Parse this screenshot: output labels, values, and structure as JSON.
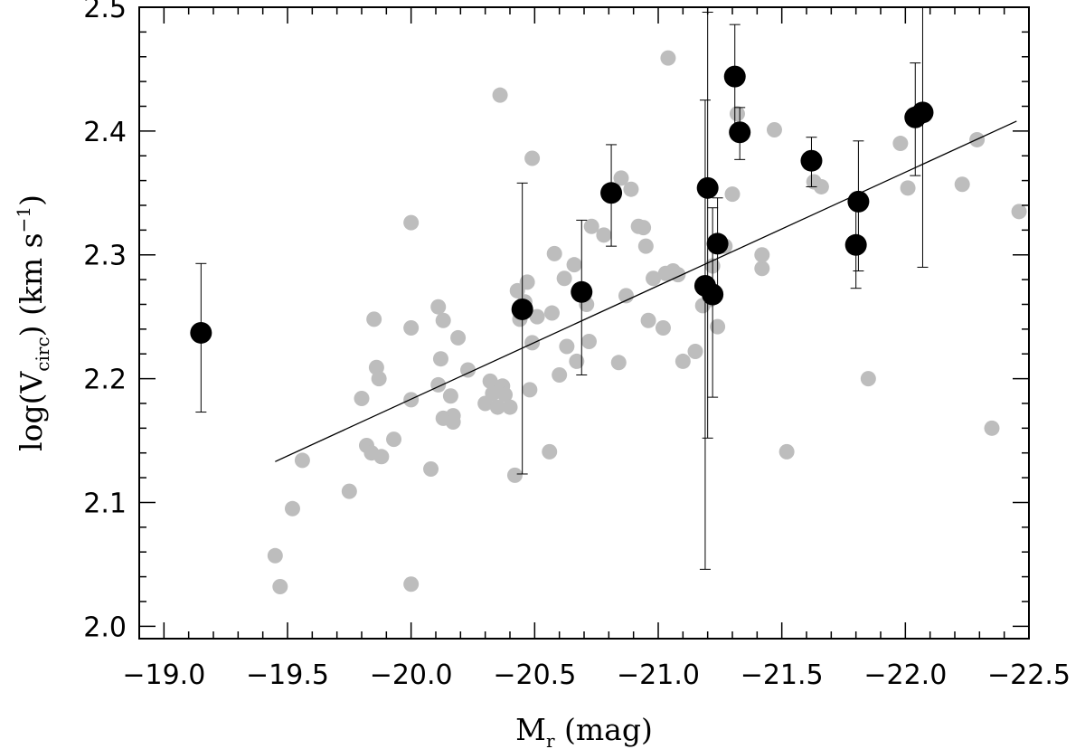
{
  "chart_data": {
    "type": "scatter",
    "xlabel": "M",
    "xlabel_sub": "r",
    "xlabel_unit": " (mag)",
    "ylabel_pre": "log(V",
    "ylabel_sub": "circ",
    "ylabel_mid": ")  (km s",
    "ylabel_sup": "−1",
    "ylabel_post": ")",
    "xlim": [
      -18.9,
      -22.5
    ],
    "ylim": [
      1.99,
      2.5
    ],
    "grid": false,
    "x_ticks": [
      -19.0,
      -19.5,
      -20.0,
      -20.5,
      -21.0,
      -21.5,
      -22.0,
      -22.5
    ],
    "x_tick_labels": [
      "−19.0",
      "−19.5",
      "−20.0",
      "−20.5",
      "−21.0",
      "−21.5",
      "−22.0",
      "−22.5"
    ],
    "y_ticks": [
      2.0,
      2.1,
      2.2,
      2.3,
      2.4,
      2.5
    ],
    "y_tick_labels": [
      "2.0",
      "2.1",
      "2.2",
      "2.3",
      "2.4",
      "2.5"
    ],
    "colors": {
      "gray_points": "#bdbdbd",
      "black_points": "#000000",
      "fit_line": "#000000",
      "axes": "#000000"
    },
    "fit_line": {
      "x": [
        -19.45,
        -22.45
      ],
      "y": [
        2.133,
        2.408
      ]
    },
    "series": [
      {
        "marker": "gray-circle",
        "points": [
          [
            -19.45,
            2.057
          ],
          [
            -19.47,
            2.032
          ],
          [
            -19.52,
            2.095
          ],
          [
            -19.56,
            2.134
          ],
          [
            -19.75,
            2.109
          ],
          [
            -19.8,
            2.184
          ],
          [
            -19.82,
            2.146
          ],
          [
            -19.84,
            2.14
          ],
          [
            -19.85,
            2.248
          ],
          [
            -19.86,
            2.209
          ],
          [
            -19.87,
            2.2
          ],
          [
            -19.88,
            2.137
          ],
          [
            -19.93,
            2.151
          ],
          [
            -20.0,
            2.326
          ],
          [
            -20.0,
            2.241
          ],
          [
            -20.0,
            2.183
          ],
          [
            -20.0,
            2.034
          ],
          [
            -20.08,
            2.127
          ],
          [
            -20.11,
            2.258
          ],
          [
            -20.11,
            2.195
          ],
          [
            -20.12,
            2.216
          ],
          [
            -20.13,
            2.247
          ],
          [
            -20.13,
            2.168
          ],
          [
            -20.16,
            2.186
          ],
          [
            -20.17,
            2.17
          ],
          [
            -20.17,
            2.165
          ],
          [
            -20.19,
            2.233
          ],
          [
            -20.23,
            2.207
          ],
          [
            -20.3,
            2.18
          ],
          [
            -20.32,
            2.198
          ],
          [
            -20.33,
            2.188
          ],
          [
            -20.35,
            2.177
          ],
          [
            -20.36,
            2.429
          ],
          [
            -20.37,
            2.194
          ],
          [
            -20.38,
            2.187
          ],
          [
            -20.4,
            2.177
          ],
          [
            -20.42,
            2.122
          ],
          [
            -20.43,
            2.271
          ],
          [
            -20.44,
            2.248
          ],
          [
            -20.46,
            2.262
          ],
          [
            -20.47,
            2.278
          ],
          [
            -20.48,
            2.191
          ],
          [
            -20.49,
            2.229
          ],
          [
            -20.49,
            2.378
          ],
          [
            -20.51,
            2.25
          ],
          [
            -20.56,
            2.141
          ],
          [
            -20.57,
            2.253
          ],
          [
            -20.58,
            2.301
          ],
          [
            -20.6,
            2.203
          ],
          [
            -20.62,
            2.281
          ],
          [
            -20.63,
            2.226
          ],
          [
            -20.66,
            2.292
          ],
          [
            -20.67,
            2.214
          ],
          [
            -20.71,
            2.26
          ],
          [
            -20.72,
            2.23
          ],
          [
            -20.73,
            2.323
          ],
          [
            -20.78,
            2.316
          ],
          [
            -20.84,
            2.213
          ],
          [
            -20.85,
            2.362
          ],
          [
            -20.87,
            2.267
          ],
          [
            -20.89,
            2.353
          ],
          [
            -20.92,
            2.323
          ],
          [
            -20.94,
            2.322
          ],
          [
            -20.95,
            2.307
          ],
          [
            -20.96,
            2.247
          ],
          [
            -20.98,
            2.281
          ],
          [
            -21.02,
            2.241
          ],
          [
            -21.03,
            2.285
          ],
          [
            -21.04,
            2.459
          ],
          [
            -21.06,
            2.287
          ],
          [
            -21.08,
            2.284
          ],
          [
            -21.1,
            2.214
          ],
          [
            -21.15,
            2.222
          ],
          [
            -21.18,
            2.259
          ],
          [
            -21.21,
            2.264
          ],
          [
            -21.22,
            2.291
          ],
          [
            -21.24,
            2.242
          ],
          [
            -21.27,
            2.307
          ],
          [
            -21.3,
            2.349
          ],
          [
            -21.32,
            2.414
          ],
          [
            -21.42,
            2.289
          ],
          [
            -21.42,
            2.3
          ],
          [
            -21.47,
            2.401
          ],
          [
            -21.52,
            2.141
          ],
          [
            -21.63,
            2.359
          ],
          [
            -21.66,
            2.355
          ],
          [
            -21.85,
            2.2
          ],
          [
            -21.98,
            2.39
          ],
          [
            -22.01,
            2.354
          ],
          [
            -22.23,
            2.357
          ],
          [
            -22.29,
            2.393
          ],
          [
            -22.35,
            2.16
          ],
          [
            -22.46,
            2.335
          ]
        ]
      },
      {
        "marker": "black-circle-errorbar",
        "points": [
          {
            "x": -19.15,
            "y": 2.237,
            "lo": 2.173,
            "hi": 2.293
          },
          {
            "x": -20.45,
            "y": 2.256,
            "lo": 2.123,
            "hi": 2.358
          },
          {
            "x": -20.69,
            "y": 2.27,
            "lo": 2.203,
            "hi": 2.328
          },
          {
            "x": -20.81,
            "y": 2.35,
            "lo": 2.307,
            "hi": 2.389
          },
          {
            "x": -21.19,
            "y": 2.275,
            "lo": 2.046,
            "hi": 2.425
          },
          {
            "x": -21.2,
            "y": 2.354,
            "lo": 2.152,
            "hi": 2.496
          },
          {
            "x": -21.22,
            "y": 2.268,
            "lo": 2.185,
            "hi": 2.338
          },
          {
            "x": -21.24,
            "y": 2.309,
            "lo": 2.27,
            "hi": 2.346
          },
          {
            "x": -21.31,
            "y": 2.444,
            "lo": 2.401,
            "hi": 2.486
          },
          {
            "x": -21.33,
            "y": 2.399,
            "lo": 2.377,
            "hi": 2.419
          },
          {
            "x": -21.62,
            "y": 2.376,
            "lo": 2.355,
            "hi": 2.395
          },
          {
            "x": -21.8,
            "y": 2.308,
            "lo": 2.273,
            "hi": 2.343
          },
          {
            "x": -21.81,
            "y": 2.343,
            "lo": 2.287,
            "hi": 2.392
          },
          {
            "x": -22.04,
            "y": 2.411,
            "lo": 2.364,
            "hi": 2.455
          },
          {
            "x": -22.07,
            "y": 2.415,
            "lo": 2.29,
            "hi": 2.5
          }
        ]
      }
    ]
  }
}
